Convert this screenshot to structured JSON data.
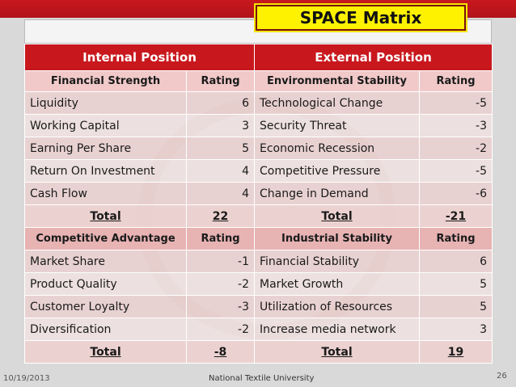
{
  "slide": {
    "title": "SPACE Matrix",
    "footer_date": "10/19/2013",
    "footer_center": "National Textile University",
    "page_number": "26"
  },
  "headers": {
    "internal": "Internal Position",
    "external": "External Position"
  },
  "top": {
    "left_header": "Financial Strength",
    "left_rating": "Rating",
    "right_header": "Environmental Stability",
    "right_rating": "Rating",
    "rows": [
      {
        "left": "Liquidity",
        "left_val": "6",
        "right": "Technological Change",
        "right_val": "-5"
      },
      {
        "left": "Working Capital",
        "left_val": "3",
        "right": "Security Threat",
        "right_val": "-3"
      },
      {
        "left": "Earning Per Share",
        "left_val": "5",
        "right": "Economic Recession",
        "right_val": "-2"
      },
      {
        "left": "Return On Investment",
        "left_val": "4",
        "right": "Competitive Pressure",
        "right_val": "-5"
      },
      {
        "left": "Cash Flow",
        "left_val": "4",
        "right": "Change in Demand",
        "right_val": "-6"
      }
    ],
    "total_label_left": "Total",
    "total_left": "22",
    "total_label_right": "Total",
    "total_right": "-21"
  },
  "bottom": {
    "left_header": "Competitive Advantage",
    "left_rating": "Rating",
    "right_header": "Industrial Stability",
    "right_rating": "Rating",
    "rows": [
      {
        "left": "Market Share",
        "left_val": "-1",
        "right": "Financial Stability",
        "right_val": "6"
      },
      {
        "left": "Product Quality",
        "left_val": "-2",
        "right": "Market Growth",
        "right_val": "5"
      },
      {
        "left": "Customer Loyalty",
        "left_val": "-3",
        "right": "Utilization of Resources",
        "right_val": "5"
      },
      {
        "left": "Diversification",
        "left_val": "-2",
        "right": "Increase media network",
        "right_val": "3"
      }
    ],
    "total_label_left": "Total",
    "total_left": "-8",
    "total_label_right": "Total",
    "total_right": "19"
  },
  "colors": {
    "accent_red": "#c8181e",
    "title_yellow": "#fff200"
  }
}
